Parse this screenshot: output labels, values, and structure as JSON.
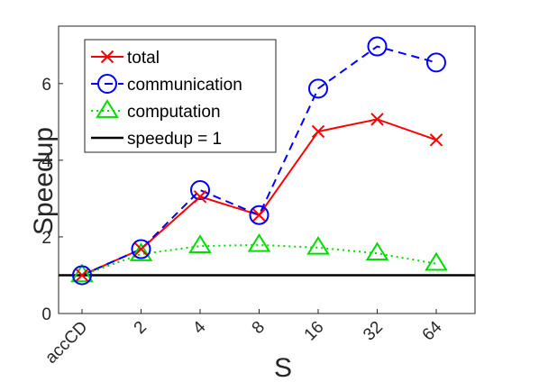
{
  "chart_data": {
    "type": "line",
    "categories": [
      "accCD",
      "2",
      "4",
      "8",
      "16",
      "32",
      "64"
    ],
    "xlabel": "S",
    "ylabel": "Speedup",
    "ylim": [
      0,
      7.5
    ],
    "yticks": [
      0,
      2,
      4,
      6
    ],
    "grid": false,
    "legend_position": "top-left",
    "series": [
      {
        "name": "total",
        "values": [
          1.0,
          1.68,
          3.05,
          2.57,
          4.75,
          5.07,
          4.53
        ],
        "color": "#ff0000",
        "line_style": "solid",
        "marker": "x"
      },
      {
        "name": "communication",
        "values": [
          1.0,
          1.68,
          3.22,
          2.57,
          5.87,
          6.97,
          6.55
        ],
        "color": "#0000ff",
        "line_style": "dashed",
        "marker": "circle"
      },
      {
        "name": "computation",
        "values": [
          1.0,
          1.55,
          1.76,
          1.79,
          1.72,
          1.57,
          1.3
        ],
        "color": "#00dd00",
        "line_style": "dotted",
        "marker": "triangle"
      },
      {
        "name": "speedup = 1",
        "values": [
          1,
          1,
          1,
          1,
          1,
          1,
          1
        ],
        "color": "#000000",
        "line_style": "solid",
        "marker": "none"
      }
    ]
  }
}
